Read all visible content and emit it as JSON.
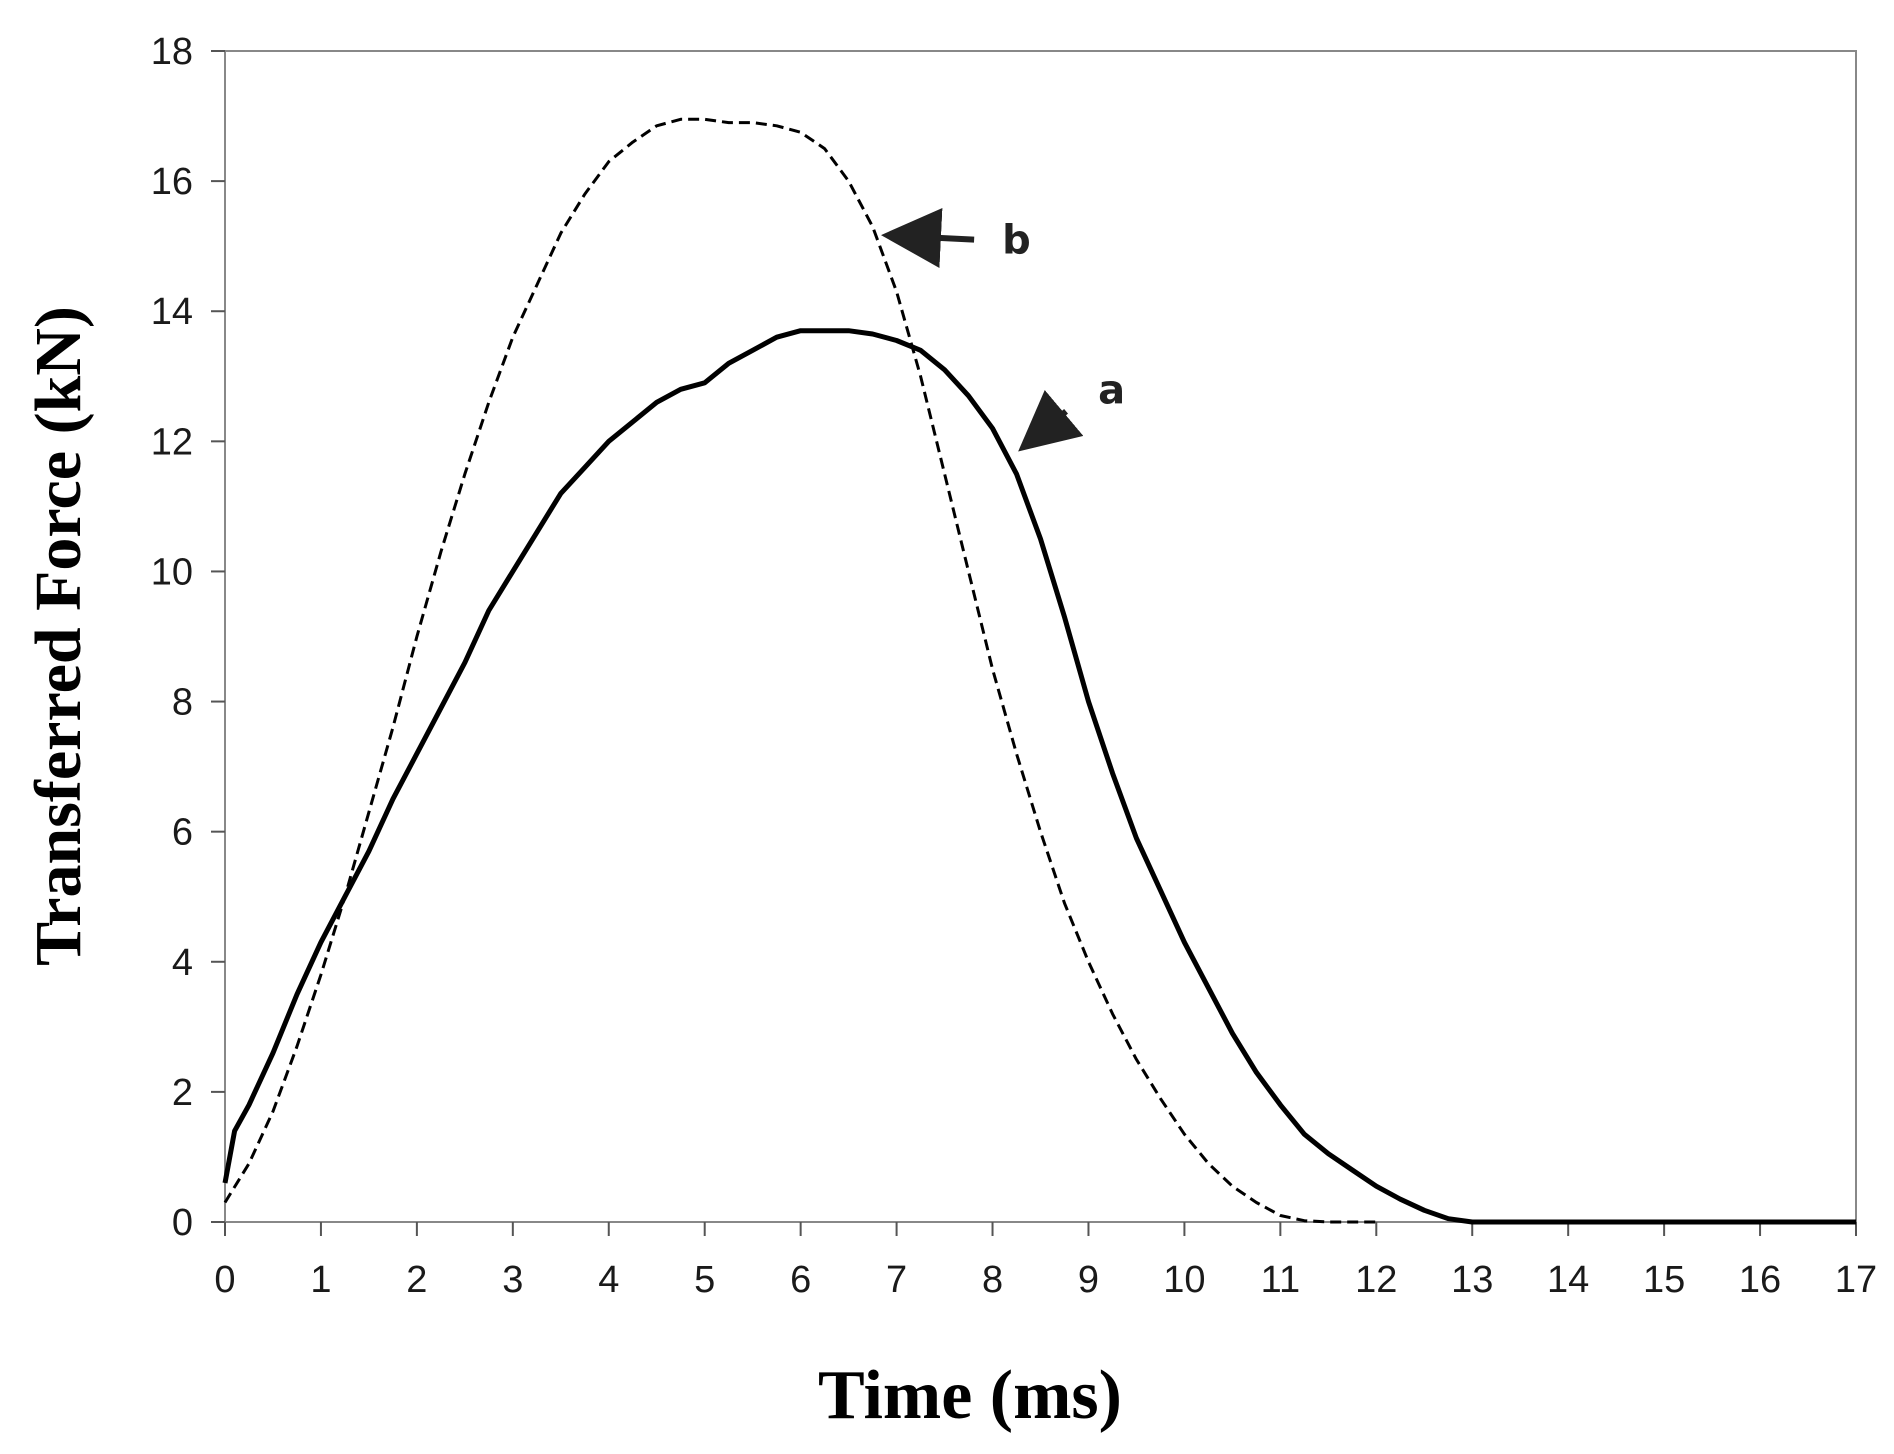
{
  "chart_data": {
    "type": "line",
    "title": "",
    "xlabel": "Time (ms)",
    "ylabel": "Transferred Force (kN)",
    "xlim": [
      0,
      17
    ],
    "ylim": [
      0,
      18
    ],
    "xticks": [
      0,
      1,
      2,
      3,
      4,
      5,
      6,
      7,
      8,
      9,
      10,
      11,
      12,
      13,
      14,
      15,
      16,
      17
    ],
    "yticks": [
      0,
      2,
      4,
      6,
      8,
      10,
      12,
      14,
      16,
      18
    ],
    "grid": false,
    "legend": "none",
    "series": [
      {
        "name": "a",
        "style": "solid",
        "color": "#000000",
        "x": [
          0,
          0.1,
          0.25,
          0.5,
          0.75,
          1.0,
          1.25,
          1.5,
          1.75,
          2.0,
          2.25,
          2.5,
          2.75,
          3.0,
          3.25,
          3.5,
          3.75,
          4.0,
          4.25,
          4.5,
          4.75,
          5.0,
          5.25,
          5.5,
          5.75,
          6.0,
          6.25,
          6.5,
          6.75,
          7.0,
          7.25,
          7.5,
          7.75,
          8.0,
          8.25,
          8.5,
          8.75,
          9.0,
          9.25,
          9.5,
          9.75,
          10.0,
          10.25,
          10.5,
          10.75,
          11.0,
          11.25,
          11.5,
          11.75,
          12.0,
          12.25,
          12.5,
          12.75,
          13.0,
          13.5,
          14.0,
          15.0,
          16.0,
          17.0
        ],
        "y": [
          0.6,
          1.4,
          1.8,
          2.6,
          3.5,
          4.3,
          5.0,
          5.7,
          6.5,
          7.2,
          7.9,
          8.6,
          9.4,
          10.0,
          10.6,
          11.2,
          11.6,
          12.0,
          12.3,
          12.6,
          12.8,
          12.9,
          13.2,
          13.4,
          13.6,
          13.7,
          13.7,
          13.7,
          13.65,
          13.55,
          13.4,
          13.1,
          12.7,
          12.2,
          11.5,
          10.5,
          9.3,
          8.0,
          6.9,
          5.9,
          5.1,
          4.3,
          3.6,
          2.9,
          2.3,
          1.8,
          1.35,
          1.05,
          0.8,
          0.55,
          0.35,
          0.18,
          0.05,
          0.0,
          0.0,
          0.0,
          0.0,
          0.0,
          0.0
        ]
      },
      {
        "name": "b",
        "style": "dashed",
        "color": "#000000",
        "x": [
          0,
          0.25,
          0.5,
          0.75,
          1.0,
          1.25,
          1.5,
          1.75,
          2.0,
          2.25,
          2.5,
          2.75,
          3.0,
          3.25,
          3.5,
          3.75,
          4.0,
          4.25,
          4.5,
          4.75,
          5.0,
          5.25,
          5.5,
          5.75,
          6.0,
          6.25,
          6.5,
          6.75,
          7.0,
          7.25,
          7.5,
          7.75,
          8.0,
          8.25,
          8.5,
          8.75,
          9.0,
          9.25,
          9.5,
          9.75,
          10.0,
          10.25,
          10.5,
          10.75,
          11.0,
          11.25,
          11.5,
          12.0
        ],
        "y": [
          0.3,
          0.9,
          1.7,
          2.7,
          3.8,
          5.0,
          6.3,
          7.6,
          9.0,
          10.3,
          11.5,
          12.6,
          13.6,
          14.4,
          15.2,
          15.8,
          16.3,
          16.6,
          16.85,
          16.95,
          16.95,
          16.9,
          16.9,
          16.85,
          16.75,
          16.5,
          16.0,
          15.3,
          14.3,
          13.0,
          11.5,
          10.0,
          8.5,
          7.2,
          6.0,
          4.9,
          4.0,
          3.2,
          2.5,
          1.9,
          1.35,
          0.9,
          0.55,
          0.3,
          0.1,
          0.02,
          0.0,
          0.0
        ]
      }
    ],
    "annotations": [
      {
        "label": "a",
        "target_x": 8.3,
        "target_y": 11.9,
        "text_x": 9.1,
        "text_y": 12.8
      },
      {
        "label": "b",
        "target_x": 6.9,
        "target_y": 15.1,
        "text_x": 8.1,
        "text_y": 15.1
      }
    ]
  }
}
